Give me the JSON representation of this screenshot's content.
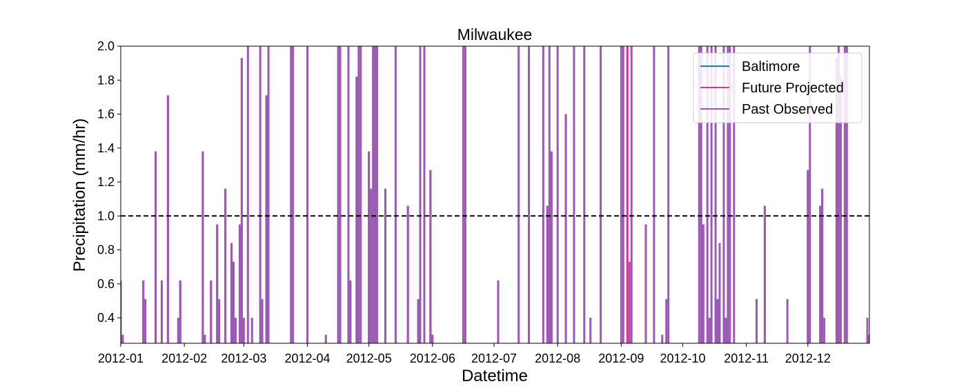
{
  "chart_data": {
    "type": "bar",
    "title": "Milwaukee",
    "xlabel": "Datetime",
    "ylabel": "Precipitation (mm/hr)",
    "xlim": [
      "2012-01-01",
      "2012-12-31"
    ],
    "ylim": [
      0.25,
      2.0
    ],
    "x_ticks": [
      "2012-01",
      "2012-02",
      "2012-03",
      "2012-04",
      "2012-05",
      "2012-06",
      "2012-07",
      "2012-08",
      "2012-09",
      "2012-10",
      "2012-11",
      "2012-12"
    ],
    "y_ticks": [
      0.4,
      0.6,
      0.8,
      1.0,
      1.2,
      1.4,
      1.6,
      1.8,
      2.0
    ],
    "threshold": 1.0,
    "grid": false,
    "legend_position": "top-right",
    "series": [
      {
        "name": "Baltimore",
        "color": "#1f77b4",
        "values": []
      },
      {
        "name": "Future Projected",
        "color": "#e7298a",
        "values": [
          {
            "x": "2012-01-12",
            "y": 0.62
          },
          {
            "x": "2012-01-18",
            "y": 1.38
          },
          {
            "x": "2012-01-21",
            "y": 0.62
          },
          {
            "x": "2012-01-24",
            "y": 1.71
          },
          {
            "x": "2012-01-30",
            "y": 0.62
          },
          {
            "x": "2012-02-10",
            "y": 1.38
          },
          {
            "x": "2012-02-14",
            "y": 0.62
          },
          {
            "x": "2012-02-17",
            "y": 0.95
          },
          {
            "x": "2012-02-21",
            "y": 1.16
          },
          {
            "x": "2012-02-24",
            "y": 0.84
          },
          {
            "x": "2012-02-29",
            "y": 1.93
          },
          {
            "x": "2012-03-12",
            "y": 1.71
          },
          {
            "x": "2012-04-25",
            "y": 1.82
          },
          {
            "x": "2012-05-01",
            "y": 1.38
          },
          {
            "x": "2012-05-09",
            "y": 1.16
          },
          {
            "x": "2012-05-20",
            "y": 1.06
          },
          {
            "x": "2012-05-31",
            "y": 1.27
          },
          {
            "x": "2012-05-31",
            "y": 0.84
          },
          {
            "x": "2012-07-03",
            "y": 0.62
          },
          {
            "x": "2012-07-27",
            "y": 1.06
          },
          {
            "x": "2012-07-29",
            "y": 1.38
          },
          {
            "x": "2012-08-05",
            "y": 1.6
          },
          {
            "x": "2012-09-04",
            "y": 2.0
          },
          {
            "x": "2012-09-13",
            "y": 0.95
          },
          {
            "x": "2012-10-11",
            "y": 0.95
          },
          {
            "x": "2012-10-19",
            "y": 0.84
          },
          {
            "x": "2012-11-10",
            "y": 1.06
          },
          {
            "x": "2012-12-01",
            "y": 1.27
          },
          {
            "x": "2012-12-08",
            "y": 1.16
          },
          {
            "x": "2012-12-15",
            "y": 1.93
          },
          {
            "x": "2012-12-17",
            "y": 1.82
          }
        ]
      },
      {
        "name": "Past Observed",
        "color": "#9b59b6",
        "values": [
          {
            "x": "2012-01-01",
            "y": 0.62
          },
          {
            "x": "2012-01-02",
            "y": 0.3
          },
          {
            "x": "2012-01-12",
            "y": 0.62
          },
          {
            "x": "2012-01-13",
            "y": 0.51
          },
          {
            "x": "2012-01-18",
            "y": 1.38
          },
          {
            "x": "2012-01-21",
            "y": 0.62
          },
          {
            "x": "2012-01-24",
            "y": 1.71
          },
          {
            "x": "2012-01-29",
            "y": 0.4
          },
          {
            "x": "2012-01-30",
            "y": 0.62
          },
          {
            "x": "2012-02-10",
            "y": 1.38
          },
          {
            "x": "2012-02-11",
            "y": 0.3
          },
          {
            "x": "2012-02-14",
            "y": 0.62
          },
          {
            "x": "2012-02-17",
            "y": 0.95
          },
          {
            "x": "2012-02-18",
            "y": 0.51
          },
          {
            "x": "2012-02-21",
            "y": 1.16
          },
          {
            "x": "2012-02-24",
            "y": 0.84
          },
          {
            "x": "2012-02-25",
            "y": 0.73
          },
          {
            "x": "2012-02-26",
            "y": 0.4
          },
          {
            "x": "2012-02-28",
            "y": 0.95
          },
          {
            "x": "2012-02-29",
            "y": 1.93
          },
          {
            "x": "2012-03-01",
            "y": 0.4
          },
          {
            "x": "2012-03-03",
            "y": 2.0
          },
          {
            "x": "2012-03-05",
            "y": 0.4
          },
          {
            "x": "2012-03-09",
            "y": 2.0
          },
          {
            "x": "2012-03-10",
            "y": 0.51
          },
          {
            "x": "2012-03-12",
            "y": 1.71
          },
          {
            "x": "2012-03-13",
            "y": 2.0
          },
          {
            "x": "2012-03-24",
            "y": 2.0
          },
          {
            "x": "2012-03-25",
            "y": 2.0
          },
          {
            "x": "2012-04-01",
            "y": 2.0
          },
          {
            "x": "2012-04-10",
            "y": 0.3
          },
          {
            "x": "2012-04-16",
            "y": 2.0
          },
          {
            "x": "2012-04-17",
            "y": 2.0
          },
          {
            "x": "2012-04-21",
            "y": 2.0
          },
          {
            "x": "2012-04-22",
            "y": 0.62
          },
          {
            "x": "2012-04-25",
            "y": 1.82
          },
          {
            "x": "2012-04-26",
            "y": 2.0
          },
          {
            "x": "2012-04-27",
            "y": 2.0
          },
          {
            "x": "2012-05-01",
            "y": 1.38
          },
          {
            "x": "2012-05-02",
            "y": 1.16
          },
          {
            "x": "2012-05-03",
            "y": 2.0
          },
          {
            "x": "2012-05-04",
            "y": 2.0
          },
          {
            "x": "2012-05-05",
            "y": 2.0
          },
          {
            "x": "2012-05-09",
            "y": 1.16
          },
          {
            "x": "2012-05-14",
            "y": 2.0
          },
          {
            "x": "2012-05-20",
            "y": 1.06
          },
          {
            "x": "2012-05-25",
            "y": 0.51
          },
          {
            "x": "2012-05-26",
            "y": 2.0
          },
          {
            "x": "2012-05-28",
            "y": 2.0
          },
          {
            "x": "2012-05-31",
            "y": 1.27
          },
          {
            "x": "2012-06-01",
            "y": 0.3
          },
          {
            "x": "2012-06-16",
            "y": 2.0
          },
          {
            "x": "2012-06-17",
            "y": 2.0
          },
          {
            "x": "2012-07-03",
            "y": 0.62
          },
          {
            "x": "2012-07-13",
            "y": 2.0
          },
          {
            "x": "2012-07-18",
            "y": 2.0
          },
          {
            "x": "2012-07-25",
            "y": 2.0
          },
          {
            "x": "2012-07-27",
            "y": 1.06
          },
          {
            "x": "2012-07-28",
            "y": 2.0
          },
          {
            "x": "2012-07-29",
            "y": 1.38
          },
          {
            "x": "2012-08-01",
            "y": 2.0
          },
          {
            "x": "2012-08-05",
            "y": 1.6
          },
          {
            "x": "2012-08-09",
            "y": 2.0
          },
          {
            "x": "2012-08-14",
            "y": 2.0
          },
          {
            "x": "2012-08-17",
            "y": 0.4
          },
          {
            "x": "2012-08-22",
            "y": 2.0
          },
          {
            "x": "2012-09-01",
            "y": 2.0
          },
          {
            "x": "2012-09-02",
            "y": 2.0
          },
          {
            "x": "2012-09-05",
            "y": 0.73
          },
          {
            "x": "2012-09-06",
            "y": 2.0
          },
          {
            "x": "2012-09-13",
            "y": 0.95
          },
          {
            "x": "2012-09-17",
            "y": 2.0
          },
          {
            "x": "2012-09-21",
            "y": 0.3
          },
          {
            "x": "2012-09-23",
            "y": 0.51
          },
          {
            "x": "2012-09-24",
            "y": 2.0
          },
          {
            "x": "2012-10-09",
            "y": 2.0
          },
          {
            "x": "2012-10-10",
            "y": 2.0
          },
          {
            "x": "2012-10-11",
            "y": 0.95
          },
          {
            "x": "2012-10-13",
            "y": 2.0
          },
          {
            "x": "2012-10-14",
            "y": 0.4
          },
          {
            "x": "2012-10-15",
            "y": 2.0
          },
          {
            "x": "2012-10-17",
            "y": 2.0
          },
          {
            "x": "2012-10-18",
            "y": 0.51
          },
          {
            "x": "2012-10-19",
            "y": 0.84
          },
          {
            "x": "2012-10-21",
            "y": 2.0
          },
          {
            "x": "2012-10-22",
            "y": 0.4
          },
          {
            "x": "2012-10-23",
            "y": 2.0
          },
          {
            "x": "2012-10-24",
            "y": 2.0
          },
          {
            "x": "2012-10-26",
            "y": 2.0
          },
          {
            "x": "2012-11-06",
            "y": 0.51
          },
          {
            "x": "2012-11-10",
            "y": 1.06
          },
          {
            "x": "2012-11-21",
            "y": 0.51
          },
          {
            "x": "2012-12-01",
            "y": 1.27
          },
          {
            "x": "2012-12-02",
            "y": 2.0
          },
          {
            "x": "2012-12-07",
            "y": 1.06
          },
          {
            "x": "2012-12-08",
            "y": 1.16
          },
          {
            "x": "2012-12-09",
            "y": 0.4
          },
          {
            "x": "2012-12-15",
            "y": 1.93
          },
          {
            "x": "2012-12-16",
            "y": 2.0
          },
          {
            "x": "2012-12-17",
            "y": 1.82
          },
          {
            "x": "2012-12-19",
            "y": 2.0
          },
          {
            "x": "2012-12-20",
            "y": 2.0
          },
          {
            "x": "2012-12-30",
            "y": 0.4
          },
          {
            "x": "2012-12-31",
            "y": 0.3
          }
        ]
      }
    ]
  }
}
